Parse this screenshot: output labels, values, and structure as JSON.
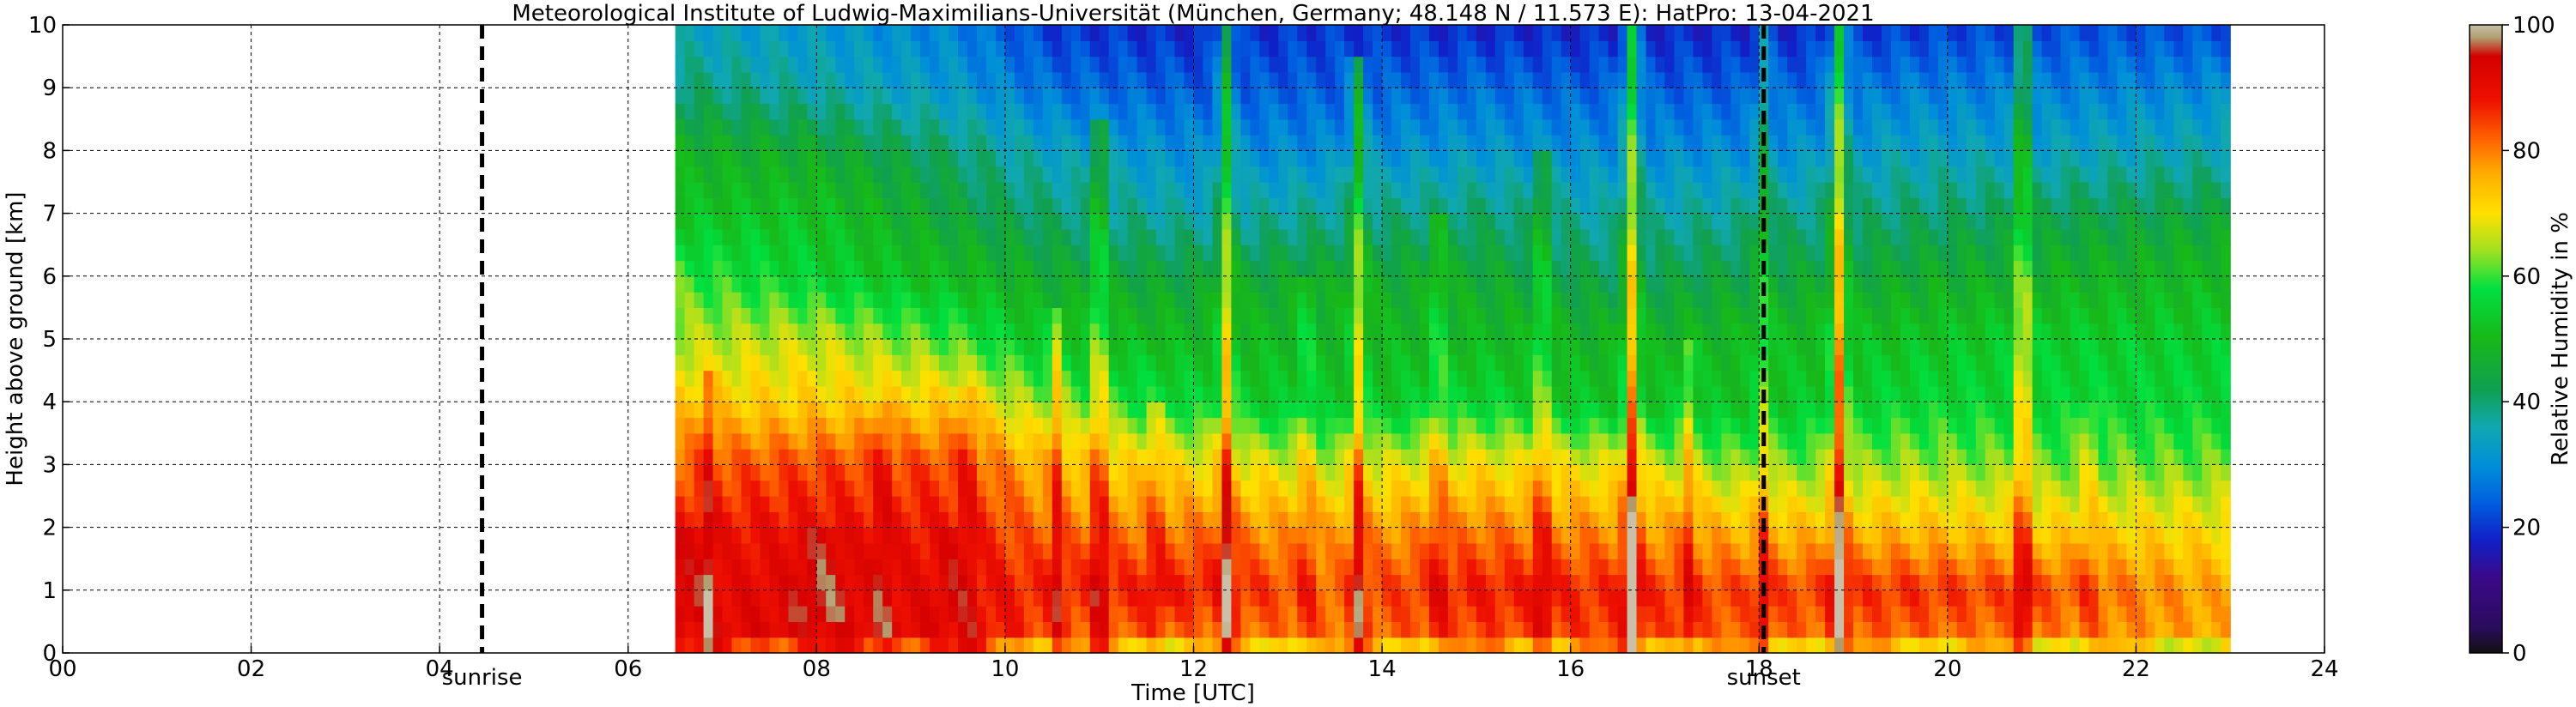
{
  "chart_data": {
    "type": "heatmap",
    "title": "Meteorological Institute of Ludwig-Maximilians-Universität (München, Germany; 48.148 N / 11.573 E):    HatPro: 13-04-2021",
    "xlabel": "Time [UTC]",
    "ylabel": "Height above ground [km]",
    "xlim": [
      0,
      24
    ],
    "ylim": [
      0,
      10
    ],
    "xticks": [
      "00",
      "02",
      "04",
      "06",
      "08",
      "10",
      "12",
      "14",
      "16",
      "18",
      "20",
      "22",
      "24"
    ],
    "yticks": [
      "0",
      "1",
      "2",
      "3",
      "4",
      "5",
      "6",
      "7",
      "8",
      "9",
      "10"
    ],
    "grid": true,
    "data_range_hours": [
      6.5,
      23.0
    ],
    "colorbar": {
      "label": "Relative Humidity in %",
      "range": [
        0,
        100
      ],
      "ticks": [
        "0",
        "20",
        "40",
        "60",
        "80",
        "100"
      ],
      "colors": [
        {
          "v": 0,
          "c": "#111111"
        },
        {
          "v": 4,
          "c": "#2a0c5c"
        },
        {
          "v": 12,
          "c": "#3a0a8a"
        },
        {
          "v": 18,
          "c": "#1020c8"
        },
        {
          "v": 24,
          "c": "#0060e0"
        },
        {
          "v": 30,
          "c": "#0090d8"
        },
        {
          "v": 36,
          "c": "#10a8b0"
        },
        {
          "v": 42,
          "c": "#10a050"
        },
        {
          "v": 50,
          "c": "#18b818"
        },
        {
          "v": 58,
          "c": "#00e040"
        },
        {
          "v": 64,
          "c": "#a0e020"
        },
        {
          "v": 70,
          "c": "#ffe000"
        },
        {
          "v": 76,
          "c": "#ffb000"
        },
        {
          "v": 82,
          "c": "#ff6000"
        },
        {
          "v": 88,
          "c": "#ee1000"
        },
        {
          "v": 95,
          "c": "#d40000"
        },
        {
          "v": 98,
          "c": "#b0a070"
        },
        {
          "v": 100,
          "c": "#c8c0a8"
        }
      ]
    },
    "markers": [
      {
        "label": "sunrise",
        "x": 4.45
      },
      {
        "label": "sunset",
        "x": 18.05
      }
    ],
    "spikes": [
      {
        "t": 6.85,
        "amp": 10,
        "top": 4.6
      },
      {
        "t": 8.7,
        "amp": 8,
        "top": 4.0
      },
      {
        "t": 9.6,
        "amp": 8,
        "top": 4.2
      },
      {
        "t": 10.55,
        "amp": 14,
        "top": 5.5
      },
      {
        "t": 11.0,
        "amp": 20,
        "top": 8.5
      },
      {
        "t": 11.6,
        "amp": 8,
        "top": 4.0
      },
      {
        "t": 12.35,
        "amp": 26,
        "top": 10.0
      },
      {
        "t": 13.2,
        "amp": 10,
        "top": 6.0
      },
      {
        "t": 13.75,
        "amp": 22,
        "top": 9.5
      },
      {
        "t": 14.6,
        "amp": 12,
        "top": 7.0
      },
      {
        "t": 15.7,
        "amp": 16,
        "top": 8.0
      },
      {
        "t": 16.65,
        "amp": 34,
        "top": 10.0
      },
      {
        "t": 17.25,
        "amp": 12,
        "top": 5.0
      },
      {
        "t": 18.05,
        "amp": 14,
        "top": 10.0
      },
      {
        "t": 18.85,
        "amp": 34,
        "top": 10.0
      },
      {
        "t": 20.8,
        "amp": 26,
        "top": 10.0
      },
      {
        "t": 21.5,
        "amp": 8,
        "top": 4.0
      }
    ],
    "profile_keyframes": [
      {
        "t": 6.5,
        "rh": [
          92,
          90,
          88,
          82,
          72,
          65,
          60,
          52,
          48,
          40,
          34
        ]
      },
      {
        "t": 8.0,
        "rh": [
          93,
          92,
          89,
          84,
          72,
          66,
          55,
          52,
          46,
          36,
          32
        ]
      },
      {
        "t": 9.5,
        "rh": [
          92,
          90,
          88,
          84,
          72,
          60,
          50,
          44,
          40,
          32,
          28
        ]
      },
      {
        "t": 10.5,
        "rh": [
          82,
          86,
          80,
          74,
          62,
          52,
          46,
          40,
          34,
          26,
          20
        ]
      },
      {
        "t": 12.0,
        "rh": [
          78,
          88,
          80,
          70,
          56,
          50,
          44,
          36,
          30,
          24,
          18
        ]
      },
      {
        "t": 13.5,
        "rh": [
          80,
          82,
          76,
          66,
          52,
          50,
          46,
          38,
          30,
          24,
          20
        ]
      },
      {
        "t": 15.0,
        "rh": [
          82,
          88,
          80,
          70,
          56,
          50,
          46,
          40,
          32,
          26,
          18
        ]
      },
      {
        "t": 16.5,
        "rh": [
          84,
          86,
          78,
          68,
          52,
          48,
          42,
          36,
          30,
          24,
          18
        ]
      },
      {
        "t": 18.0,
        "rh": [
          80,
          84,
          74,
          62,
          52,
          50,
          44,
          38,
          30,
          24,
          18
        ]
      },
      {
        "t": 19.5,
        "rh": [
          80,
          86,
          74,
          64,
          56,
          52,
          46,
          40,
          34,
          28,
          20
        ]
      },
      {
        "t": 21.0,
        "rh": [
          78,
          84,
          72,
          62,
          56,
          54,
          48,
          42,
          34,
          28,
          22
        ]
      },
      {
        "t": 23.0,
        "rh": [
          76,
          76,
          70,
          62,
          56,
          54,
          50,
          44,
          36,
          30,
          22
        ]
      }
    ]
  }
}
